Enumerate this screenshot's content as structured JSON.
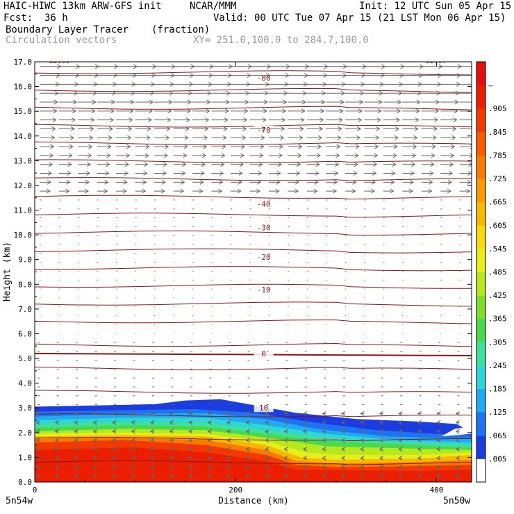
{
  "header": {
    "model": "HAIC-HIWC 13km ARW-GFS init",
    "org": "NCAR/MMM",
    "init": "Init: 12 UTC Sun 05 Apr 15",
    "fcst_label": "Fcst:",
    "fcst_value": "36 h",
    "valid": "Valid: 00 UTC Tue 07 Apr 15 (21 LST Mon 06 Apr 15)",
    "field": "Boundary Layer Tracer",
    "field_units": "(fraction)",
    "vectors": "Circulation vectors",
    "xy": "XY= 251.0,100.0 to 284.7,100.0"
  },
  "chart_data": {
    "type": "cross-section",
    "xlabel": "Distance (km)",
    "ylabel": "Height (km)",
    "xlim": [
      0,
      435
    ],
    "ylim": [
      0,
      17
    ],
    "x_ticks": [
      0,
      200,
      400
    ],
    "x_tick_labels": [
      "0",
      "200",
      "400"
    ],
    "y_ticks": [
      0,
      1,
      2,
      3,
      4,
      5,
      6,
      7,
      8,
      9,
      10,
      11,
      12,
      13,
      14,
      15,
      16,
      17
    ],
    "y_tick_labels": [
      "0.0",
      "1.0",
      "2.0",
      "3.0",
      "4.0",
      "5.0",
      "6.0",
      "7.0",
      "8.0",
      "9.0",
      "10.0",
      "11.0",
      "12.0",
      "13.0",
      "14.0",
      "15.0",
      "16.0",
      "17.0"
    ],
    "endpoint_left": "5n54w",
    "endpoint_right": "5n50w",
    "colorbar": {
      "labels": [
        ".005",
        ".065",
        ".125",
        ".185",
        ".245",
        ".305",
        ".365",
        ".425",
        ".485",
        ".545",
        ".605",
        ".665",
        ".725",
        ".785",
        ".845",
        ".905",
        "–"
      ],
      "colors": [
        "#ffffff",
        "#1c3ce0",
        "#1e74f0",
        "#22aaf0",
        "#30d6d6",
        "#3ee09a",
        "#49d84e",
        "#7fde2c",
        "#b6e81e",
        "#e8ee1e",
        "#f8d80e",
        "#f8b800",
        "#f89a00",
        "#f87a00",
        "#f85a00",
        "#f03a00",
        "#ea1e00",
        "#e60e0e"
      ]
    },
    "temperature_contours": [
      {
        "label": "-80",
        "y": 16.35
      },
      {
        "label": "-70",
        "y": 14.25
      },
      {
        "label": "-40",
        "y": 11.25
      },
      {
        "label": "-30",
        "y": 10.3
      },
      {
        "label": "-20",
        "y": 9.1
      },
      {
        "label": "-10",
        "y": 7.78
      },
      {
        "label": "0",
        "y": 5.2
      },
      {
        "label": "10",
        "y": 3.0
      }
    ],
    "corner_labels": [
      "-82.09",
      "-82.07"
    ]
  }
}
